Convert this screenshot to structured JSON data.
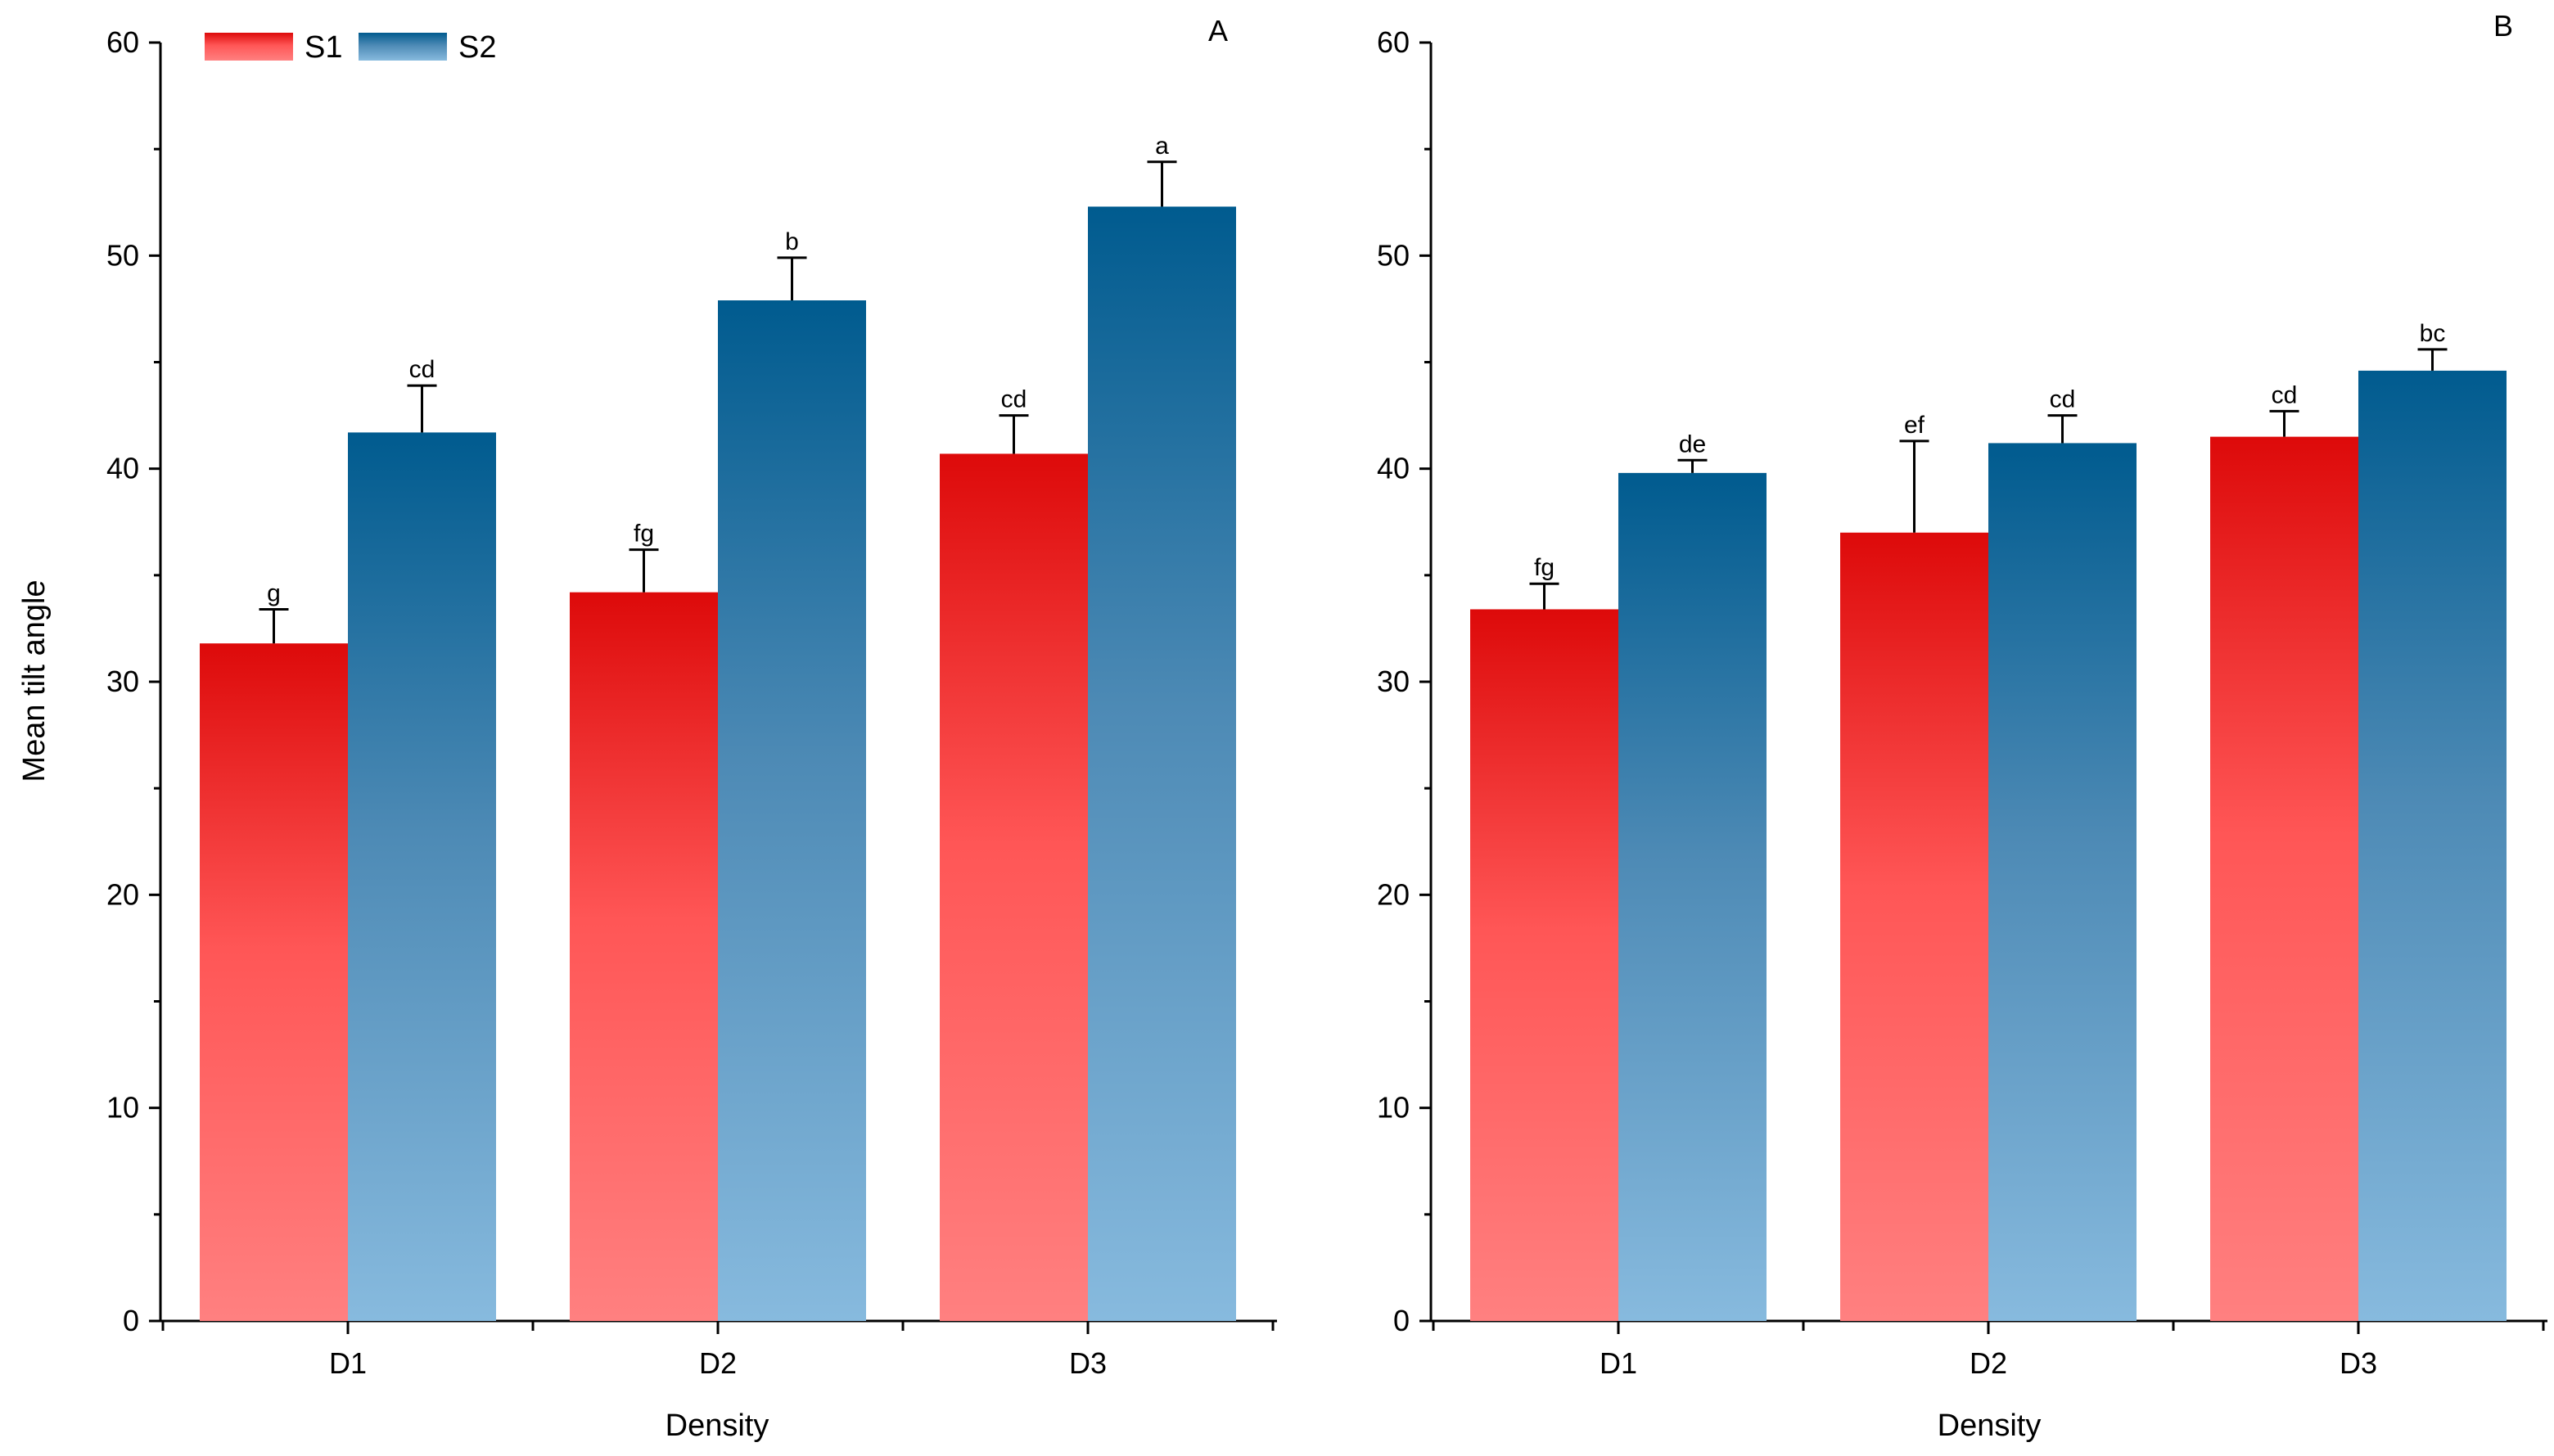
{
  "chart_data": [
    {
      "type": "bar",
      "panel": "A",
      "title": "",
      "xlabel": "Density",
      "ylabel": "Mean tilt angle",
      "ylim": [
        0,
        60
      ],
      "yticks": [
        0,
        10,
        20,
        30,
        40,
        50,
        60
      ],
      "categories": [
        "D1",
        "D2",
        "D3"
      ],
      "series": [
        {
          "name": "S1",
          "values": [
            31.8,
            34.2,
            40.7
          ],
          "errors": [
            1.6,
            2.0,
            1.8
          ],
          "labels": [
            "g",
            "fg",
            "cd"
          ]
        },
        {
          "name": "S2",
          "values": [
            41.7,
            47.9,
            52.3
          ],
          "errors": [
            2.2,
            2.0,
            2.1
          ],
          "labels": [
            "cd",
            "b",
            "a"
          ]
        }
      ]
    },
    {
      "type": "bar",
      "panel": "B",
      "title": "",
      "xlabel": "Density",
      "ylabel": "",
      "ylim": [
        0,
        60
      ],
      "yticks": [
        0,
        10,
        20,
        30,
        40,
        50,
        60
      ],
      "categories": [
        "D1",
        "D2",
        "D3"
      ],
      "series": [
        {
          "name": "S1",
          "values": [
            33.4,
            37.0,
            41.5
          ],
          "errors": [
            1.2,
            4.3,
            1.2
          ],
          "labels": [
            "fg",
            "ef",
            "cd"
          ]
        },
        {
          "name": "S2",
          "values": [
            39.8,
            41.2,
            44.6
          ],
          "errors": [
            0.6,
            1.3,
            1.0
          ],
          "labels": [
            "de",
            "cd",
            "bc"
          ]
        }
      ]
    }
  ],
  "legend": {
    "items": [
      {
        "name": "S1",
        "color_top": "#dd0a0a",
        "color_bottom": "#ff8080"
      },
      {
        "name": "S2",
        "color_top": "#005b8f",
        "color_bottom": "#87bade"
      }
    ]
  },
  "colors": {
    "s1_top": "#dd0a0a",
    "s1_bottom": "#ff8080",
    "s2_top": "#005b8f",
    "s2_bottom": "#87bade",
    "axis": "#000000"
  }
}
